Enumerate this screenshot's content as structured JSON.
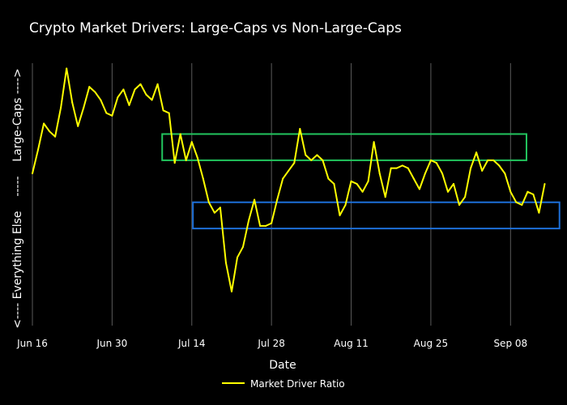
{
  "chart_data": {
    "type": "line",
    "title": "Crypto Market Drivers: Large-Caps vs Non-Large-Caps",
    "xlabel": "Date",
    "ylabel": "<---- Everything Else    -----    Large-Caps ---->",
    "x_start": "2024-06-16",
    "x_range_days": [
      0,
      91.5
    ],
    "ylim": [
      0,
      1
    ],
    "grid": true,
    "x_ticks": [
      {
        "day": 0,
        "label": "Jun 16"
      },
      {
        "day": 14,
        "label": "Jun 30"
      },
      {
        "day": 28,
        "label": "Jul 14"
      },
      {
        "day": 42,
        "label": "Jul 28"
      },
      {
        "day": 56,
        "label": "Aug 11"
      },
      {
        "day": 70,
        "label": "Aug 25"
      },
      {
        "day": 84,
        "label": "Sep 08"
      }
    ],
    "series": [
      {
        "name": "Market Driver Ratio",
        "color": "#ffff00",
        "x_days": [
          0,
          1,
          2,
          3,
          4,
          5,
          6,
          7,
          8,
          9,
          10,
          11,
          12,
          13,
          14,
          15,
          16,
          17,
          18,
          19,
          20,
          21,
          22,
          23,
          24,
          25,
          26,
          27,
          28,
          29,
          30,
          31,
          32,
          33,
          34,
          35,
          36,
          37,
          38,
          39,
          40,
          41,
          42,
          43,
          44,
          45,
          46,
          47,
          48,
          49,
          50,
          51,
          52,
          53,
          54,
          55,
          56,
          57,
          58,
          59,
          60,
          61,
          62,
          63,
          64,
          65,
          66,
          67,
          68,
          69,
          70,
          71,
          72,
          73,
          74,
          75,
          76,
          77,
          78,
          79,
          80,
          81,
          82,
          83,
          84,
          85,
          86,
          87,
          88,
          89,
          90
        ],
        "values": [
          0.58,
          0.67,
          0.77,
          0.74,
          0.72,
          0.83,
          0.98,
          0.85,
          0.76,
          0.83,
          0.91,
          0.89,
          0.86,
          0.81,
          0.8,
          0.87,
          0.9,
          0.84,
          0.9,
          0.92,
          0.88,
          0.86,
          0.92,
          0.82,
          0.81,
          0.62,
          0.73,
          0.63,
          0.7,
          0.64,
          0.56,
          0.47,
          0.43,
          0.45,
          0.24,
          0.13,
          0.26,
          0.3,
          0.4,
          0.48,
          0.38,
          0.38,
          0.39,
          0.48,
          0.56,
          0.59,
          0.62,
          0.75,
          0.65,
          0.63,
          0.65,
          0.63,
          0.56,
          0.54,
          0.42,
          0.46,
          0.55,
          0.54,
          0.51,
          0.55,
          0.7,
          0.58,
          0.49,
          0.6,
          0.6,
          0.61,
          0.6,
          0.56,
          0.52,
          0.58,
          0.63,
          0.62,
          0.58,
          0.51,
          0.54,
          0.46,
          0.49,
          0.6,
          0.66,
          0.59,
          0.63,
          0.63,
          0.61,
          0.58,
          0.51,
          0.47,
          0.46,
          0.51,
          0.5,
          0.43,
          0.54
        ]
      }
    ],
    "highlight_boxes": [
      {
        "name": "large-cap-zone",
        "color": "#22c55e",
        "x_days": [
          22.8,
          86.8
        ],
        "y_range": [
          0.63,
          0.73
        ]
      },
      {
        "name": "everything-else-zone",
        "color": "#1d6fd8",
        "x_days": [
          28.2,
          92.6
        ],
        "y_range": [
          0.37,
          0.47
        ]
      }
    ],
    "legend": {
      "position": "bottom-center",
      "label": "Market Driver Ratio"
    }
  }
}
